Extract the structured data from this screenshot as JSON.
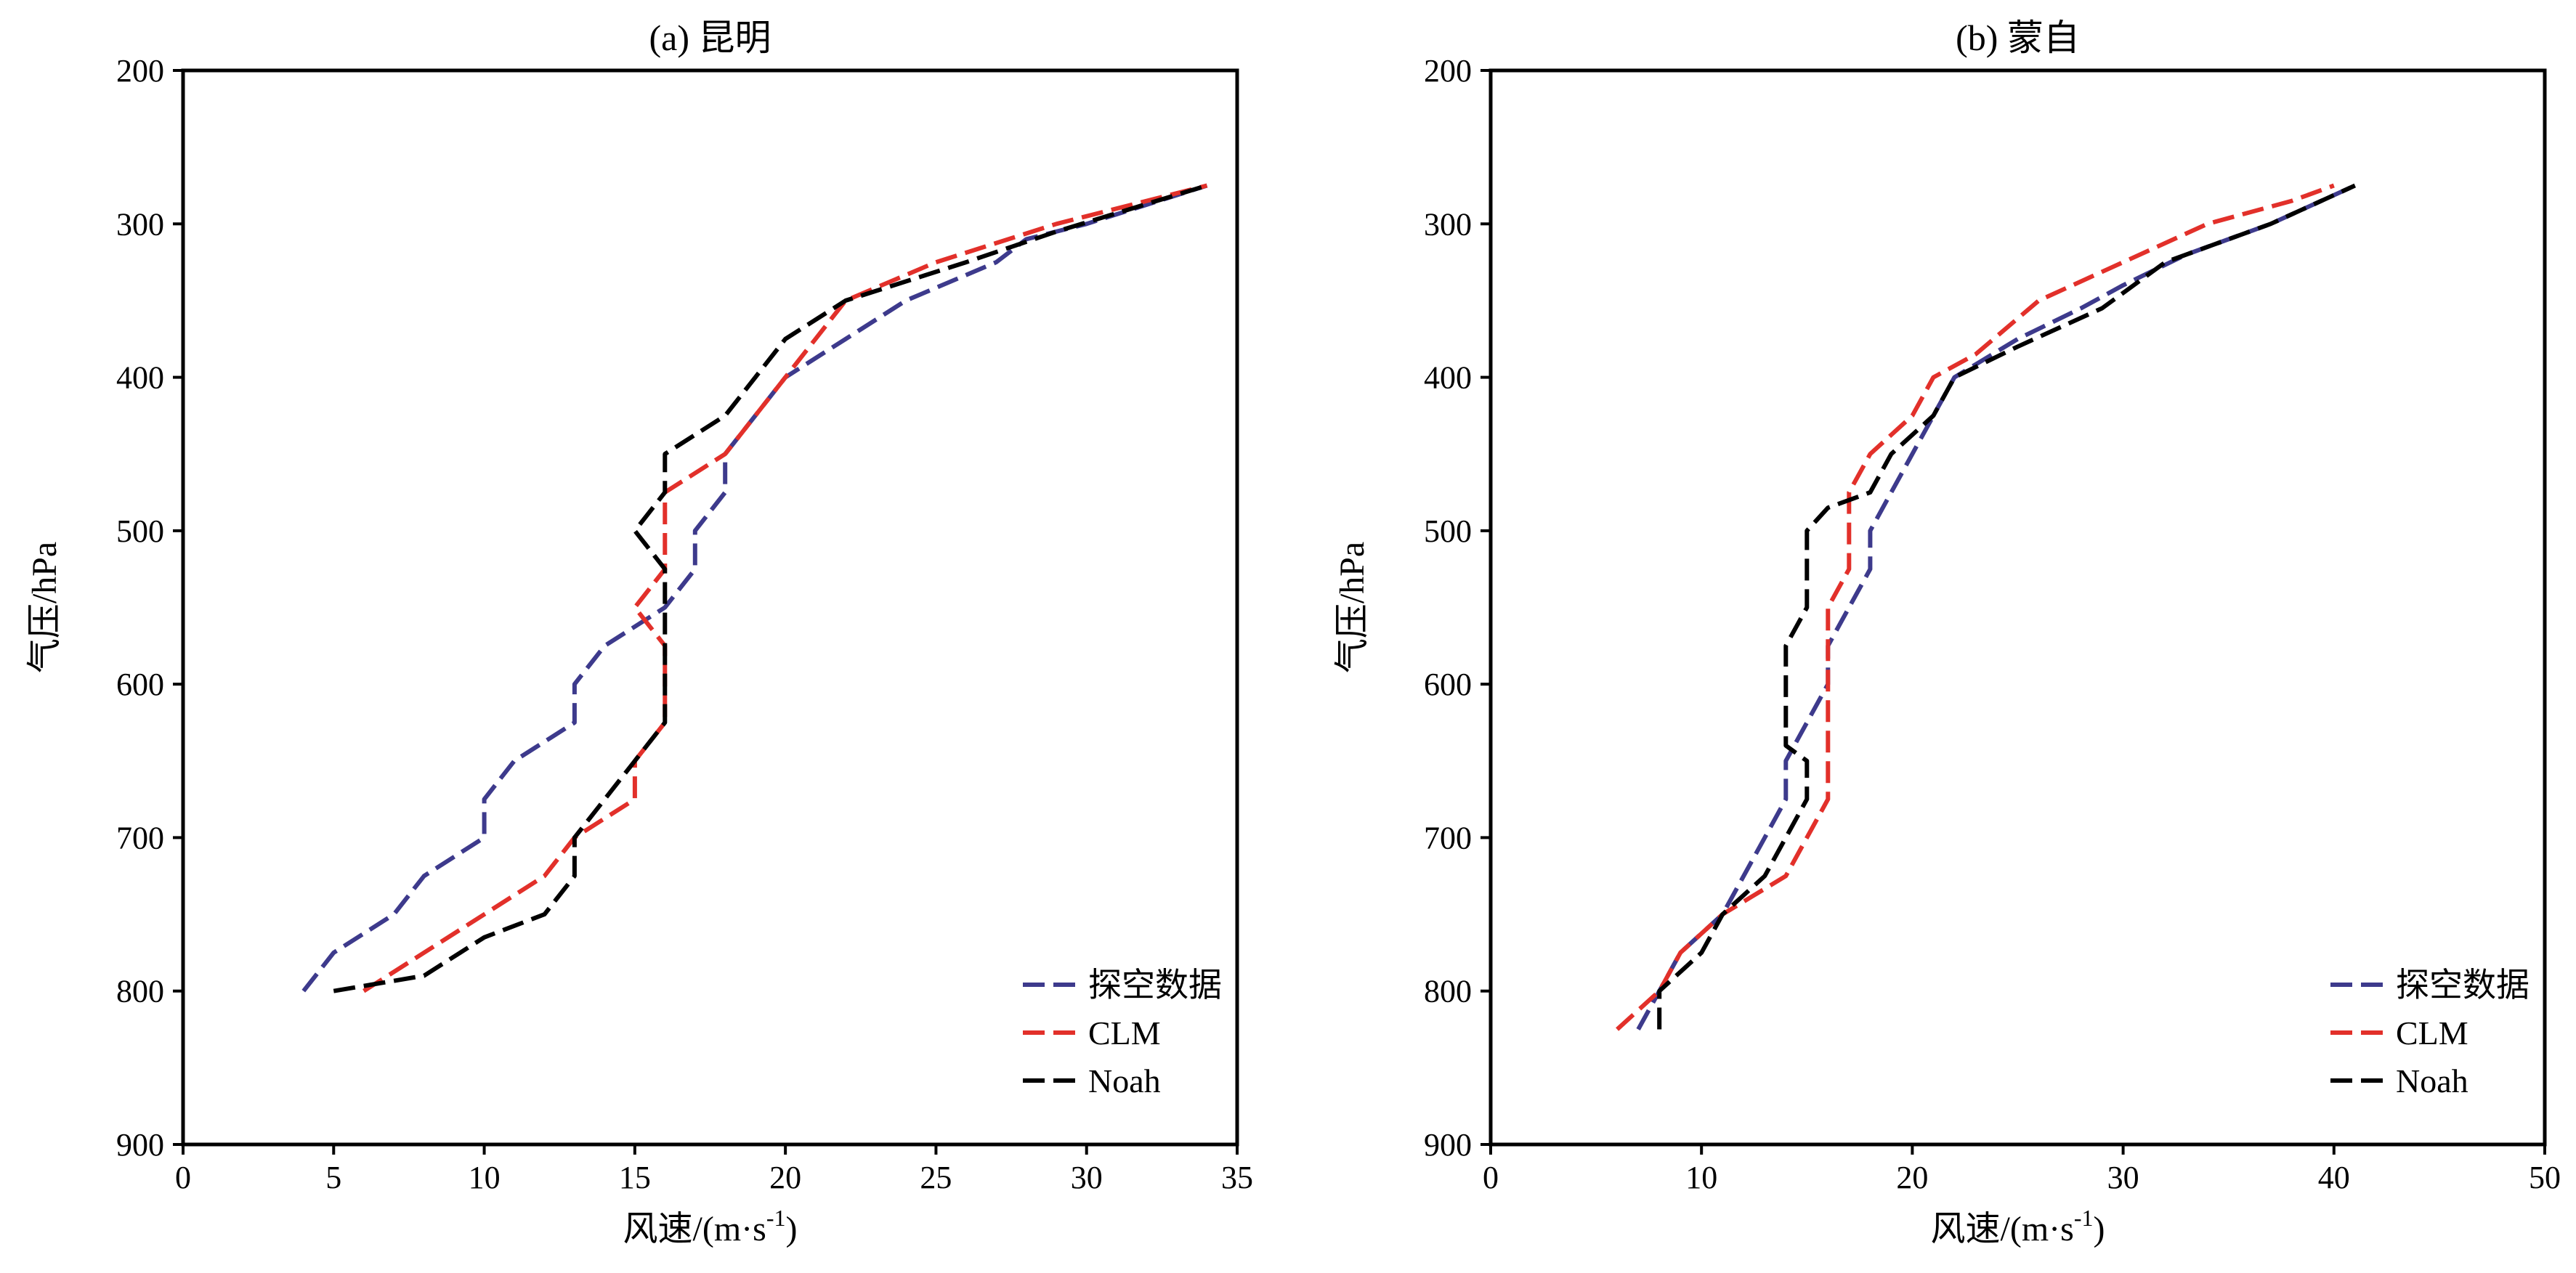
{
  "colors": {
    "sounding": "#3d3a8c",
    "clm": "#e2302a",
    "noah": "#000000"
  },
  "chart_data": [
    {
      "type": "line",
      "title": "(a) 昆明",
      "xlabel_main": "风速/(m·s",
      "xlabel_sup": "-1",
      "xlabel_close": ")",
      "ylabel": "气压/hPa",
      "xlim": [
        0,
        35
      ],
      "ylim": [
        900,
        200
      ],
      "y_inverted": true,
      "xticks": [
        "0",
        "5",
        "10",
        "15",
        "20",
        "25",
        "30",
        "35"
      ],
      "yticks": [
        "200",
        "300",
        "400",
        "500",
        "600",
        "700",
        "800",
        "900"
      ],
      "legend_position": "lower-right",
      "series": [
        {
          "name": "探空数据",
          "color_key": "sounding",
          "points": [
            [
              4,
              800
            ],
            [
              5,
              775
            ],
            [
              7,
              750
            ],
            [
              8,
              725
            ],
            [
              10,
              700
            ],
            [
              10,
              675
            ],
            [
              11,
              650
            ],
            [
              13,
              625
            ],
            [
              13,
              600
            ],
            [
              14,
              575
            ],
            [
              16,
              550
            ],
            [
              17,
              525
            ],
            [
              17,
              500
            ],
            [
              18,
              475
            ],
            [
              18,
              450
            ],
            [
              19,
              425
            ],
            [
              20,
              400
            ],
            [
              22,
              375
            ],
            [
              24,
              350
            ],
            [
              27,
              325
            ],
            [
              28,
              310
            ],
            [
              30,
              300
            ],
            [
              34,
              275
            ]
          ]
        },
        {
          "name": "CLM",
          "color_key": "clm",
          "points": [
            [
              6,
              800
            ],
            [
              8,
              775
            ],
            [
              10,
              750
            ],
            [
              12,
              725
            ],
            [
              13,
              700
            ],
            [
              15,
              675
            ],
            [
              15,
              650
            ],
            [
              16,
              625
            ],
            [
              16,
              600
            ],
            [
              16,
              575
            ],
            [
              15,
              550
            ],
            [
              16,
              525
            ],
            [
              16,
              500
            ],
            [
              16,
              475
            ],
            [
              18,
              450
            ],
            [
              19,
              425
            ],
            [
              20,
              400
            ],
            [
              21,
              375
            ],
            [
              22,
              350
            ],
            [
              25,
              325
            ],
            [
              29,
              300
            ],
            [
              34,
              275
            ]
          ]
        },
        {
          "name": "Noah",
          "color_key": "noah",
          "points": [
            [
              5,
              800
            ],
            [
              8,
              790
            ],
            [
              10,
              765
            ],
            [
              12,
              750
            ],
            [
              13,
              725
            ],
            [
              13,
              700
            ],
            [
              15,
              650
            ],
            [
              16,
              625
            ],
            [
              16,
              600
            ],
            [
              16,
              575
            ],
            [
              16,
              550
            ],
            [
              16,
              525
            ],
            [
              15,
              500
            ],
            [
              16,
              475
            ],
            [
              16,
              450
            ],
            [
              18,
              425
            ],
            [
              19,
              400
            ],
            [
              20,
              375
            ],
            [
              22,
              350
            ],
            [
              26,
              325
            ],
            [
              29,
              305
            ],
            [
              34,
              275
            ]
          ]
        }
      ]
    },
    {
      "type": "line",
      "title": "(b) 蒙自",
      "xlabel_main": "风速/(m·s",
      "xlabel_sup": "-1",
      "xlabel_close": ")",
      "ylabel": "气压/hPa",
      "xlim": [
        0,
        50
      ],
      "ylim": [
        900,
        200
      ],
      "y_inverted": true,
      "xticks": [
        "0",
        "10",
        "20",
        "30",
        "40",
        "50"
      ],
      "yticks": [
        "200",
        "300",
        "400",
        "500",
        "600",
        "700",
        "800",
        "900"
      ],
      "legend_position": "lower-right",
      "series": [
        {
          "name": "探空数据",
          "color_key": "sounding",
          "points": [
            [
              7,
              825
            ],
            [
              8,
              800
            ],
            [
              9,
              775
            ],
            [
              11,
              750
            ],
            [
              13,
              700
            ],
            [
              14,
              675
            ],
            [
              14,
              650
            ],
            [
              15,
              625
            ],
            [
              16,
              600
            ],
            [
              16,
              575
            ],
            [
              17,
              550
            ],
            [
              18,
              525
            ],
            [
              18,
              500
            ],
            [
              19,
              475
            ],
            [
              20,
              450
            ],
            [
              21,
              425
            ],
            [
              22,
              400
            ],
            [
              25,
              375
            ],
            [
              28,
              355
            ],
            [
              30,
              340
            ],
            [
              33,
              320
            ],
            [
              37,
              300
            ],
            [
              41,
              275
            ]
          ]
        },
        {
          "name": "CLM",
          "color_key": "clm",
          "points": [
            [
              6,
              825
            ],
            [
              8,
              800
            ],
            [
              9,
              775
            ],
            [
              11,
              750
            ],
            [
              14,
              725
            ],
            [
              16,
              675
            ],
            [
              16,
              650
            ],
            [
              16,
              600
            ],
            [
              16,
              575
            ],
            [
              16,
              550
            ],
            [
              17,
              525
            ],
            [
              17,
              500
            ],
            [
              17,
              475
            ],
            [
              18,
              450
            ],
            [
              20,
              425
            ],
            [
              21,
              400
            ],
            [
              23,
              385
            ],
            [
              26,
              350
            ],
            [
              30,
              325
            ],
            [
              34,
              300
            ],
            [
              38,
              285
            ],
            [
              40,
              275
            ]
          ]
        },
        {
          "name": "Noah",
          "color_key": "noah",
          "points": [
            [
              8,
              825
            ],
            [
              8,
              800
            ],
            [
              10,
              775
            ],
            [
              11,
              750
            ],
            [
              13,
              725
            ],
            [
              14,
              700
            ],
            [
              15,
              675
            ],
            [
              15,
              650
            ],
            [
              14,
              640
            ],
            [
              14,
              600
            ],
            [
              14,
              575
            ],
            [
              15,
              550
            ],
            [
              15,
              525
            ],
            [
              15,
              500
            ],
            [
              16,
              485
            ],
            [
              18,
              475
            ],
            [
              19,
              450
            ],
            [
              21,
              425
            ],
            [
              22,
              400
            ],
            [
              25,
              380
            ],
            [
              29,
              355
            ],
            [
              32,
              325
            ],
            [
              37,
              300
            ],
            [
              41,
              275
            ]
          ]
        }
      ]
    }
  ]
}
